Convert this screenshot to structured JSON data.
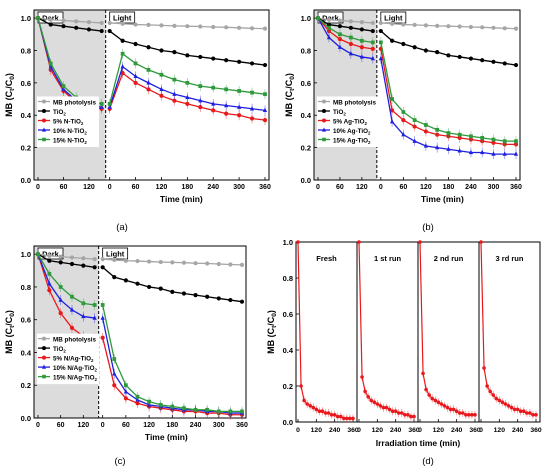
{
  "chart_data": [
    {
      "panel": "(a)",
      "type": "line",
      "ylabel": "MB (C_t/C_0)",
      "xlabel": "Time (min)",
      "ylim": [
        0.0,
        1.05
      ],
      "regions": [
        "Dark",
        "Light"
      ],
      "dark_ticks": [
        "0",
        "30",
        "60",
        "90",
        "120",
        "150"
      ],
      "light_ticks": [
        "0",
        "30",
        "60",
        "90",
        "120",
        "150",
        "180",
        "210",
        "240",
        "270",
        "300",
        "330",
        "360"
      ],
      "light_tick_labels": [
        "0",
        "60",
        "120",
        "180",
        "240",
        "300",
        "360"
      ],
      "dark_tick_labels": [
        "0",
        "60",
        "120"
      ],
      "y_ticks": [
        "0.0",
        "0.2",
        "0.4",
        "0.6",
        "0.8",
        "1.0"
      ],
      "legend_position": "lower-left",
      "series": [
        {
          "name": "MB photolysis",
          "color": "#a6a6a6",
          "marker": "circle",
          "dark_x": [
            0,
            30,
            60,
            90,
            120,
            150
          ],
          "dark_y": [
            1.0,
            0.99,
            0.985,
            0.98,
            0.975,
            0.97
          ],
          "light_x": [
            0,
            30,
            60,
            90,
            120,
            150,
            180,
            210,
            240,
            270,
            300,
            330,
            360
          ],
          "light_y": [
            0.97,
            0.965,
            0.96,
            0.958,
            0.955,
            0.952,
            0.95,
            0.948,
            0.945,
            0.943,
            0.94,
            0.937,
            0.935
          ]
        },
        {
          "name": "TiO2",
          "color": "#000000",
          "marker": "circle",
          "dark_x": [
            0,
            30,
            60,
            90,
            120,
            150
          ],
          "dark_y": [
            1.0,
            0.96,
            0.95,
            0.94,
            0.93,
            0.92
          ],
          "light_x": [
            0,
            30,
            60,
            90,
            120,
            150,
            180,
            210,
            240,
            270,
            300,
            330,
            360
          ],
          "light_y": [
            0.92,
            0.86,
            0.84,
            0.82,
            0.8,
            0.79,
            0.77,
            0.76,
            0.75,
            0.74,
            0.73,
            0.72,
            0.71
          ]
        },
        {
          "name": "5% N-TiO2",
          "color": "#e8191c",
          "marker": "circle",
          "dark_x": [
            0,
            30,
            60,
            90,
            120,
            150
          ],
          "dark_y": [
            1.0,
            0.68,
            0.55,
            0.48,
            0.45,
            0.44
          ],
          "light_x": [
            0,
            30,
            60,
            90,
            120,
            150,
            180,
            210,
            240,
            270,
            300,
            330,
            360
          ],
          "light_y": [
            0.44,
            0.66,
            0.6,
            0.56,
            0.52,
            0.49,
            0.47,
            0.45,
            0.43,
            0.41,
            0.4,
            0.38,
            0.37
          ]
        },
        {
          "name": "10% N-TiO2",
          "color": "#1f1fe0",
          "marker": "triangle",
          "dark_x": [
            0,
            30,
            60,
            90,
            120,
            150
          ],
          "dark_y": [
            1.0,
            0.7,
            0.56,
            0.49,
            0.46,
            0.45
          ],
          "light_x": [
            0,
            30,
            60,
            90,
            120,
            150,
            180,
            210,
            240,
            270,
            300,
            330,
            360
          ],
          "light_y": [
            0.45,
            0.7,
            0.64,
            0.6,
            0.56,
            0.53,
            0.51,
            0.49,
            0.47,
            0.46,
            0.45,
            0.44,
            0.43
          ]
        },
        {
          "name": "15% N-TiO2",
          "color": "#2e9a3b",
          "marker": "square",
          "dark_x": [
            0,
            30,
            60,
            90,
            120,
            150
          ],
          "dark_y": [
            1.0,
            0.72,
            0.58,
            0.51,
            0.48,
            0.47
          ],
          "light_x": [
            0,
            30,
            60,
            90,
            120,
            150,
            180,
            210,
            240,
            270,
            300,
            330,
            360
          ],
          "light_y": [
            0.47,
            0.78,
            0.72,
            0.68,
            0.65,
            0.62,
            0.6,
            0.58,
            0.57,
            0.56,
            0.55,
            0.54,
            0.53
          ]
        }
      ]
    },
    {
      "panel": "(b)",
      "type": "line",
      "ylabel": "MB (C_t/C_0)",
      "xlabel": "Time (min)",
      "ylim": [
        0.0,
        1.05
      ],
      "regions": [
        "Dark",
        "Light"
      ],
      "legend_position": "lower-left",
      "series": [
        {
          "name": "MB photolysis",
          "color": "#a6a6a6",
          "marker": "circle",
          "dark_y": [
            1.0,
            0.99,
            0.985,
            0.98,
            0.975,
            0.97
          ],
          "light_y": [
            0.97,
            0.965,
            0.96,
            0.958,
            0.955,
            0.952,
            0.95,
            0.948,
            0.945,
            0.943,
            0.94,
            0.937,
            0.935
          ]
        },
        {
          "name": "TiO2",
          "color": "#000000",
          "marker": "circle",
          "dark_y": [
            1.0,
            0.96,
            0.95,
            0.94,
            0.93,
            0.92
          ],
          "light_y": [
            0.92,
            0.86,
            0.84,
            0.82,
            0.8,
            0.79,
            0.77,
            0.76,
            0.75,
            0.74,
            0.73,
            0.72,
            0.71
          ]
        },
        {
          "name": "5% Ag-TiO2",
          "color": "#e8191c",
          "marker": "circle",
          "dark_y": [
            1.0,
            0.92,
            0.87,
            0.84,
            0.82,
            0.81
          ],
          "light_y": [
            0.81,
            0.43,
            0.37,
            0.33,
            0.3,
            0.28,
            0.27,
            0.26,
            0.25,
            0.24,
            0.23,
            0.22,
            0.22
          ]
        },
        {
          "name": "10% Ag-TiO2",
          "color": "#1f1fe0",
          "marker": "triangle",
          "dark_y": [
            1.0,
            0.88,
            0.82,
            0.78,
            0.76,
            0.75
          ],
          "light_y": [
            0.75,
            0.36,
            0.28,
            0.24,
            0.21,
            0.2,
            0.19,
            0.18,
            0.17,
            0.17,
            0.16,
            0.16,
            0.16
          ]
        },
        {
          "name": "15% Ag-TiO2",
          "color": "#2e9a3b",
          "marker": "square",
          "dark_y": [
            1.0,
            0.94,
            0.9,
            0.88,
            0.86,
            0.85
          ],
          "light_y": [
            0.85,
            0.5,
            0.42,
            0.37,
            0.34,
            0.31,
            0.29,
            0.28,
            0.27,
            0.26,
            0.25,
            0.24,
            0.24
          ]
        }
      ]
    },
    {
      "panel": "(c)",
      "type": "line",
      "ylabel": "MB (C_t/C_0)",
      "xlabel": "Time (min)",
      "ylim": [
        0.0,
        1.05
      ],
      "regions": [
        "Dark",
        "Light"
      ],
      "legend_position": "lower-left",
      "series": [
        {
          "name": "MB photolysis",
          "color": "#a6a6a6",
          "marker": "circle",
          "dark_y": [
            1.0,
            0.99,
            0.985,
            0.98,
            0.975,
            0.97
          ],
          "light_y": [
            0.97,
            0.965,
            0.96,
            0.958,
            0.955,
            0.952,
            0.95,
            0.948,
            0.945,
            0.943,
            0.94,
            0.937,
            0.935
          ]
        },
        {
          "name": "TiO2",
          "color": "#000000",
          "marker": "circle",
          "dark_y": [
            1.0,
            0.96,
            0.95,
            0.94,
            0.93,
            0.92
          ],
          "light_y": [
            0.92,
            0.86,
            0.84,
            0.82,
            0.8,
            0.79,
            0.77,
            0.76,
            0.75,
            0.74,
            0.73,
            0.72,
            0.71
          ]
        },
        {
          "name": "5% N/Ag-TiO2",
          "color": "#e8191c",
          "marker": "circle",
          "dark_y": [
            1.0,
            0.78,
            0.64,
            0.55,
            0.5,
            0.49
          ],
          "light_y": [
            0.49,
            0.2,
            0.12,
            0.09,
            0.07,
            0.06,
            0.05,
            0.04,
            0.04,
            0.03,
            0.03,
            0.02,
            0.02
          ]
        },
        {
          "name": "10% N/Ag-TiO2",
          "color": "#1f1fe0",
          "marker": "triangle",
          "dark_y": [
            1.0,
            0.82,
            0.72,
            0.66,
            0.62,
            0.61
          ],
          "light_y": [
            0.61,
            0.27,
            0.16,
            0.11,
            0.08,
            0.07,
            0.06,
            0.05,
            0.05,
            0.04,
            0.04,
            0.03,
            0.03
          ]
        },
        {
          "name": "15% N/Ag-TiO2",
          "color": "#2e9a3b",
          "marker": "square",
          "dark_y": [
            1.0,
            0.88,
            0.8,
            0.74,
            0.7,
            0.69
          ],
          "light_y": [
            0.69,
            0.36,
            0.2,
            0.13,
            0.1,
            0.08,
            0.07,
            0.06,
            0.05,
            0.05,
            0.04,
            0.04,
            0.04
          ]
        }
      ]
    },
    {
      "panel": "(d)",
      "type": "line",
      "ylabel": "MB (C_t/C_0)",
      "xlabel": "Irradiation time (min)",
      "ylim": [
        0.0,
        1.0
      ],
      "y_ticks": [
        "0.0",
        "0.2",
        "0.4",
        "0.6",
        "0.8",
        "1.0"
      ],
      "x_tick_labels": [
        "0",
        "120",
        "240",
        "360"
      ],
      "runs": [
        "Fresh",
        "1 st run",
        "2 nd run",
        "3 rd run"
      ],
      "color": "#e8191c",
      "x": [
        0,
        20,
        40,
        60,
        80,
        100,
        120,
        140,
        160,
        180,
        200,
        220,
        240,
        260,
        280,
        300,
        320,
        340,
        360
      ],
      "run_values": [
        [
          1.0,
          0.2,
          0.12,
          0.1,
          0.09,
          0.08,
          0.07,
          0.06,
          0.06,
          0.05,
          0.05,
          0.04,
          0.04,
          0.03,
          0.03,
          0.02,
          0.02,
          0.02,
          0.02
        ],
        [
          1.0,
          0.25,
          0.17,
          0.14,
          0.12,
          0.11,
          0.1,
          0.09,
          0.08,
          0.08,
          0.07,
          0.06,
          0.06,
          0.05,
          0.05,
          0.04,
          0.04,
          0.03,
          0.03
        ],
        [
          1.0,
          0.27,
          0.18,
          0.15,
          0.13,
          0.12,
          0.11,
          0.1,
          0.09,
          0.08,
          0.07,
          0.07,
          0.06,
          0.05,
          0.05,
          0.04,
          0.04,
          0.04,
          0.04
        ],
        [
          1.0,
          0.3,
          0.2,
          0.17,
          0.15,
          0.13,
          0.12,
          0.11,
          0.1,
          0.09,
          0.08,
          0.07,
          0.07,
          0.06,
          0.06,
          0.05,
          0.05,
          0.04,
          0.04
        ]
      ]
    }
  ]
}
